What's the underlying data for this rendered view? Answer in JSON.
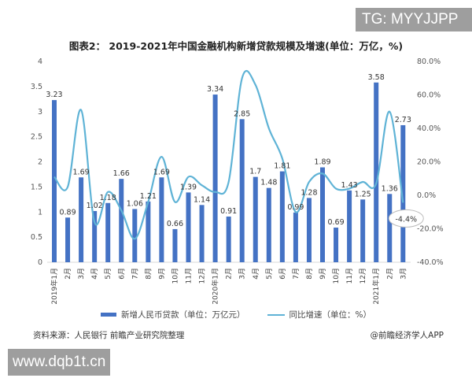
{
  "overlay": {
    "tg_tag": "TG: MYYJJPP",
    "site_watermark": "www.dqb1t.cn"
  },
  "header": {
    "title": "图表2： 2019-2021年中国金融机构新增贷款规模及增速(单位：万亿，%)"
  },
  "footer": {
    "source": "资料来源：人民银行 前瞻产业研究院整理",
    "credit": "@前瞻经济学人APP"
  },
  "legend": {
    "bar_label": "新增人民币贷款（单位：万亿元）",
    "line_label": "同比增速（单位：%）"
  },
  "colors": {
    "bar": "#4472c4",
    "line": "#5fb3d6"
  },
  "chart_data": {
    "type": "bar+line",
    "title": "图表2： 2019-2021年中国金融机构新增贷款规模及增速(单位：万亿，%)",
    "categories": [
      "2019年1月",
      "2月",
      "3月",
      "4月",
      "5月",
      "6月",
      "7月",
      "8月",
      "9月",
      "10月",
      "11月",
      "12月",
      "2020年1月",
      "2月",
      "3月",
      "4月",
      "5月",
      "6月",
      "7月",
      "8月",
      "9月",
      "10月",
      "11月",
      "12月",
      "2021年1月",
      "2月",
      "3月"
    ],
    "series": [
      {
        "name": "新增人民币贷款（单位：万亿元）",
        "type": "bar",
        "axis": "left",
        "values": [
          3.23,
          0.89,
          1.69,
          1.02,
          1.18,
          1.66,
          1.06,
          1.21,
          1.69,
          0.66,
          1.39,
          1.14,
          3.34,
          0.91,
          2.85,
          1.7,
          1.48,
          1.81,
          0.99,
          1.28,
          1.89,
          0.69,
          1.43,
          1.25,
          3.58,
          1.36,
          2.73
        ]
      },
      {
        "name": "同比增速（单位：%）",
        "type": "line",
        "axis": "right",
        "values": [
          11,
          5,
          51,
          -16,
          2,
          -9,
          -26,
          -4,
          23,
          -4,
          11,
          6,
          2,
          8,
          70,
          66,
          40,
          22,
          -10,
          8,
          13,
          4,
          4,
          8,
          7,
          50,
          -4.4
        ]
      }
    ],
    "left_axis": {
      "ticks": [
        "0",
        "0.5",
        "1",
        "1.5",
        "2",
        "2.5",
        "3",
        "3.5",
        "4"
      ],
      "ylim": [
        0,
        4
      ]
    },
    "right_axis": {
      "ticks": [
        "-40.0%",
        "-20.0%",
        "0.0%",
        "20.0%",
        "40.0%",
        "60.0%",
        "80.0%"
      ],
      "ylim": [
        -40,
        80
      ]
    },
    "annotation": "-4.4%",
    "legend_position": "bottom",
    "grid": false
  }
}
